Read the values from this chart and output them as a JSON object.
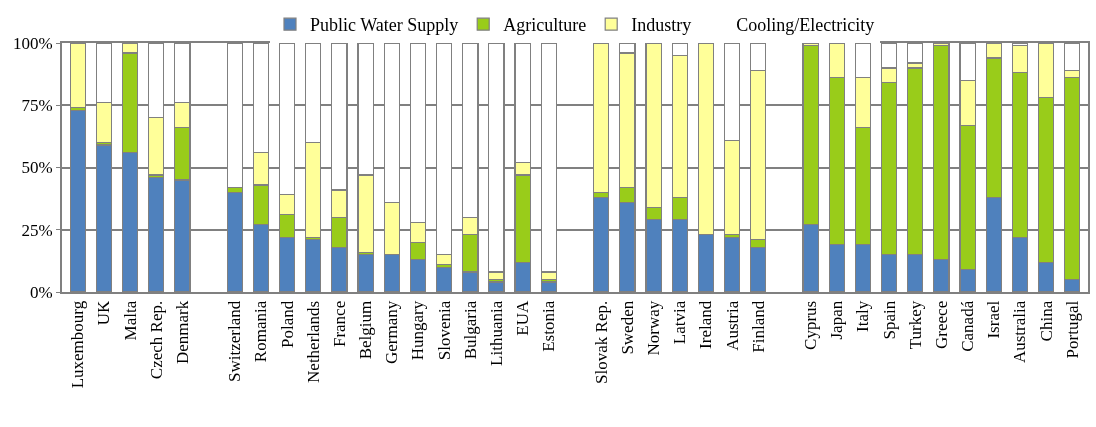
{
  "chart_data": {
    "type": "bar",
    "stacked": true,
    "categories": [
      "Luxembourg",
      "UK",
      "Malta",
      "Czech Rep.",
      "Denmark",
      null,
      "Switzerland",
      "Romania",
      "Poland",
      "Netherlands",
      "France",
      "Belgium",
      "Germany",
      "Hungary",
      "Slovenia",
      "Bulgaria",
      "Lithuania",
      "EUA",
      "Estonia",
      null,
      "Slovak Rep.",
      "Sweden",
      "Norway",
      "Latvia",
      "Ireland",
      "Austria",
      "Finland",
      null,
      "Cyprus",
      "Japan",
      "Italy",
      "Spain",
      "Turkey",
      "Greece",
      "Canadá",
      "Israel",
      "Australia",
      "China",
      "Portugal"
    ],
    "series": [
      {
        "name": "Public Water Supply",
        "color": "#4f81bd",
        "values": [
          73,
          59,
          56,
          46,
          45,
          null,
          40,
          27,
          22,
          21,
          18,
          15,
          15,
          13,
          10,
          8,
          4,
          12,
          4,
          null,
          38,
          36,
          29,
          29,
          23,
          22,
          18,
          null,
          27,
          19,
          19,
          15,
          15,
          13,
          9,
          38,
          22,
          12,
          5
        ]
      },
      {
        "name": "Agriculture",
        "color": "#99cc1a",
        "values": [
          1,
          1,
          40,
          1,
          21,
          null,
          2,
          16,
          9,
          1,
          12,
          1,
          0,
          7,
          1,
          15,
          1,
          35,
          1,
          null,
          2,
          6,
          5,
          9,
          0,
          1,
          3,
          null,
          72,
          67,
          47,
          69,
          75,
          86,
          58,
          56,
          66,
          66,
          81
        ]
      },
      {
        "name": "Industry",
        "color": "#ffff99",
        "values": [
          26,
          16,
          4,
          23,
          10,
          null,
          0,
          13,
          8,
          38,
          11,
          31,
          21,
          8,
          4,
          7,
          3,
          5,
          3,
          null,
          60,
          54,
          66,
          57,
          77,
          38,
          68,
          null,
          1,
          14,
          20,
          6,
          2,
          1,
          18,
          6,
          11,
          22,
          3
        ]
      },
      {
        "name": "Cooling/Electricity",
        "color": "#ffffff",
        "values": [
          0,
          24,
          0,
          30,
          24,
          null,
          58,
          44,
          61,
          40,
          59,
          53,
          64,
          72,
          85,
          70,
          92,
          48,
          92,
          null,
          0,
          4,
          0,
          5,
          0,
          39,
          11,
          null,
          0,
          0,
          14,
          10,
          8,
          0,
          15,
          0,
          1,
          0,
          11
        ]
      }
    ],
    "ylim": [
      0,
      100
    ],
    "yticks": [
      {
        "value": 0,
        "label": "0%"
      },
      {
        "value": 25,
        "label": "25%"
      },
      {
        "value": 50,
        "label": "50%"
      },
      {
        "value": 75,
        "label": "75%"
      },
      {
        "value": 100,
        "label": "100%"
      }
    ],
    "grid": "y",
    "legend": "top"
  }
}
